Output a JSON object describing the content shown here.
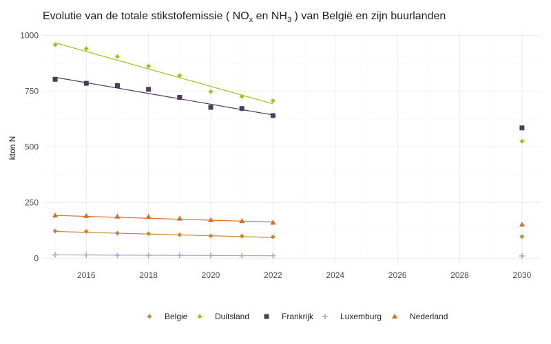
{
  "chart_data": {
    "type": "scatter",
    "title": "Evolutie van de totale stikstofemissie ( NO",
    "title_sub_x": "x",
    "title_mid": " en NH",
    "title_sub_3": "3",
    "title_end": " ) van België en zijn buurlanden",
    "ylabel": "kton N",
    "xlabel": "",
    "xlim": [
      2014.6,
      2030.6
    ],
    "ylim": [
      -30,
      1020
    ],
    "x_ticks": [
      "2016",
      "2018",
      "2020",
      "2022",
      "2024",
      "2026",
      "2028",
      "2030"
    ],
    "y_ticks": [
      "0",
      "250",
      "500",
      "750",
      "1000"
    ],
    "grid": true,
    "legend_position": "bottom",
    "series": [
      {
        "name": "Belgie",
        "color": "#c9873b",
        "marker": "diamond",
        "x": [
          2015,
          2016,
          2017,
          2018,
          2019,
          2020,
          2021,
          2022,
          2030
        ],
        "y": [
          122,
          120,
          112,
          110,
          105,
          100,
          99,
          96,
          97
        ],
        "trend": [
          [
            2015,
            120
          ],
          [
            2022,
            93
          ]
        ]
      },
      {
        "name": "Duitsland",
        "color": "#9dc41a",
        "marker": "diamond",
        "x": [
          2015,
          2016,
          2017,
          2018,
          2019,
          2020,
          2021,
          2022,
          2030
        ],
        "y": [
          958,
          940,
          905,
          862,
          820,
          748,
          726,
          707,
          525
        ],
        "trend": [
          [
            2015,
            967
          ],
          [
            2022,
            693
          ]
        ]
      },
      {
        "name": "Frankrijk",
        "color": "#4e3a5c",
        "marker": "square",
        "x": [
          2015,
          2016,
          2017,
          2018,
          2019,
          2020,
          2021,
          2022,
          2030
        ],
        "y": [
          803,
          785,
          775,
          758,
          722,
          677,
          672,
          640,
          585
        ],
        "trend": [
          [
            2015,
            812
          ],
          [
            2022,
            643
          ]
        ]
      },
      {
        "name": "Luxemburg",
        "color": "#b79fd2",
        "marker": "plus",
        "x": [
          2015,
          2016,
          2017,
          2018,
          2019,
          2020,
          2021,
          2022,
          2030
        ],
        "y": [
          15,
          14,
          13,
          13,
          13,
          12,
          11,
          11,
          10
        ],
        "trend": [
          [
            2015,
            15
          ],
          [
            2022,
            11
          ]
        ]
      },
      {
        "name": "Nederland",
        "color": "#de6a23",
        "marker": "triangle",
        "x": [
          2015,
          2016,
          2017,
          2018,
          2019,
          2020,
          2021,
          2022,
          2030
        ],
        "y": [
          192,
          190,
          187,
          186,
          178,
          171,
          167,
          160,
          151
        ],
        "trend": [
          [
            2015,
            192
          ],
          [
            2022,
            162
          ]
        ]
      }
    ]
  }
}
